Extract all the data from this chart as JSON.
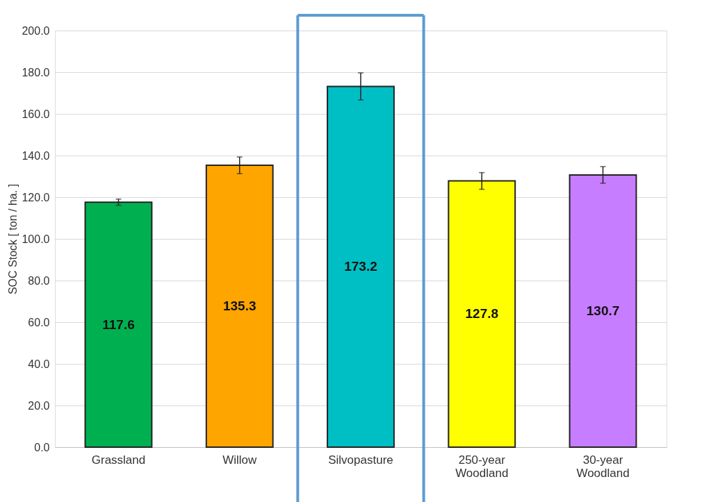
{
  "chart_data": {
    "type": "bar",
    "ylabel": "SOC Stock [ ton / ha. ]",
    "categories": [
      "Grassland",
      "Willow",
      "Silvopasture",
      "250-year Woodland",
      "30-year Woodland"
    ],
    "values": [
      117.6,
      135.3,
      173.2,
      127.8,
      130.7
    ],
    "colors": [
      "#00b050",
      "#ffa500",
      "#00bfc4",
      "#ffff00",
      "#c77dff"
    ],
    "errors": [
      1.5,
      4,
      6.5,
      4,
      4
    ],
    "data_labels": true,
    "ylim": [
      0,
      200
    ],
    "yticks": [
      {
        "value": 0,
        "label": "0.0"
      },
      {
        "value": 20,
        "label": "20.0"
      },
      {
        "value": 40,
        "label": "40.0"
      },
      {
        "value": 60,
        "label": "60.0"
      },
      {
        "value": 80,
        "label": "80.0"
      },
      {
        "value": 100,
        "label": "100.0"
      },
      {
        "value": 120,
        "label": "120.0"
      },
      {
        "value": 140,
        "label": "140.0"
      },
      {
        "value": 160,
        "label": "160.0"
      },
      {
        "value": 180,
        "label": "180.0"
      },
      {
        "value": 200,
        "label": "200.0"
      }
    ],
    "grid": "y"
  }
}
